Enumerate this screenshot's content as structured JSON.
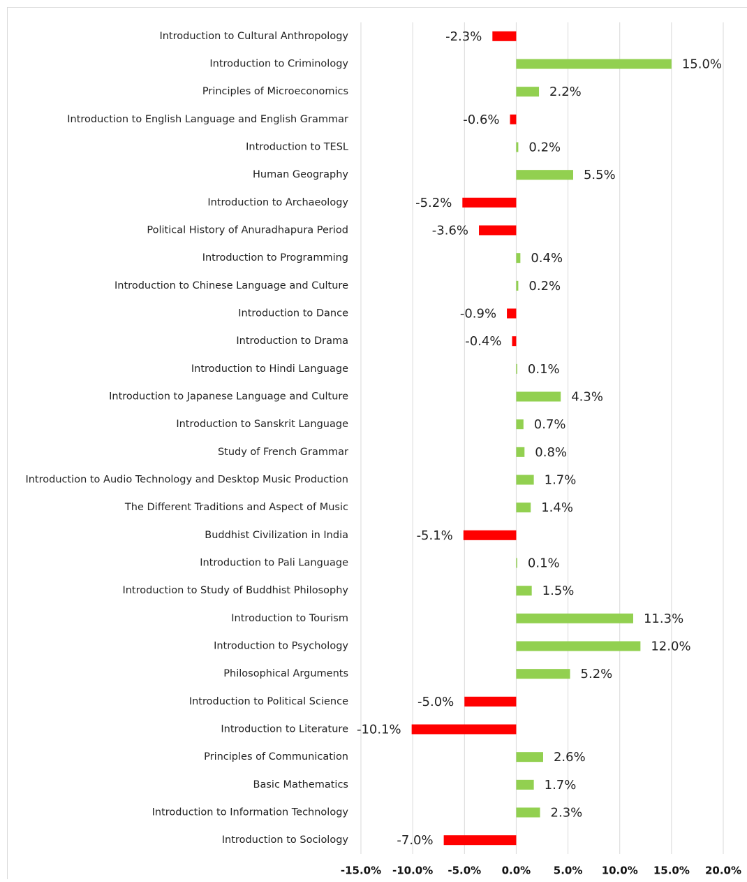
{
  "chart_data": {
    "type": "hbar",
    "categories": [
      "Introduction to Cultural Anthropology",
      "Introduction to Criminology",
      "Principles of Microeconomics",
      "Introduction to English Language and English Grammar",
      "Introduction to TESL",
      "Human Geography",
      "Introduction to Archaeology",
      "Political History of Anuradhapura Period",
      "Introduction to Programming",
      "Introduction to Chinese Language and Culture",
      "Introduction to Dance",
      "Introduction to Drama",
      "Introduction to Hindi Language",
      "Introduction to Japanese Language and Culture",
      "Introduction to Sanskrit Language",
      "Study of French Grammar",
      "Introduction to Audio Technology and Desktop Music Production",
      "The Different Traditions and Aspect of Music",
      "Buddhist Civilization in India",
      "Introduction to Pali Language",
      "Introduction to Study of Buddhist Philosophy",
      "Introduction to Tourism",
      "Introduction to Psychology",
      "Philosophical Arguments",
      "Introduction to Political Science",
      "Introduction to Literature",
      "Principles of Communication",
      "Basic Mathematics",
      "Introduction to Information Technology",
      "Introduction to Sociology"
    ],
    "values": [
      -2.3,
      15.0,
      2.2,
      -0.6,
      0.2,
      5.5,
      -5.2,
      -3.6,
      0.4,
      0.2,
      -0.9,
      -0.4,
      0.1,
      4.3,
      0.7,
      0.8,
      1.7,
      1.4,
      -5.1,
      0.1,
      1.5,
      11.3,
      12.0,
      5.2,
      -5.0,
      -10.1,
      2.6,
      1.7,
      2.3,
      -7.0
    ],
    "value_labels": [
      "-2.3%",
      "15.0%",
      "2.2%",
      "-0.6%",
      "0.2%",
      "5.5%",
      "-5.2%",
      "-3.6%",
      "0.4%",
      "0.2%",
      "-0.9%",
      "-0.4%",
      "0.1%",
      "4.3%",
      "0.7%",
      "0.8%",
      "1.7%",
      "1.4%",
      "-5.1%",
      "0.1%",
      "1.5%",
      "11.3%",
      "12.0%",
      "5.2%",
      "-5.0%",
      "-10.1%",
      "2.6%",
      "1.7%",
      "2.3%",
      "-7.0%"
    ],
    "positive_color": "#92d050",
    "negative_color": "#ff0000",
    "xlim": [
      -15,
      20
    ],
    "xticks": [
      {
        "value": -15,
        "label": "-15.0%"
      },
      {
        "value": -10,
        "label": "-10.0%"
      },
      {
        "value": -5,
        "label": "-5.0%"
      },
      {
        "value": 0,
        "label": "0.0%"
      },
      {
        "value": 5,
        "label": "5.0%"
      },
      {
        "value": 10,
        "label": "10.0%"
      },
      {
        "value": 15,
        "label": "15.0%"
      },
      {
        "value": 20,
        "label": "20.0%"
      }
    ],
    "grid": true
  }
}
